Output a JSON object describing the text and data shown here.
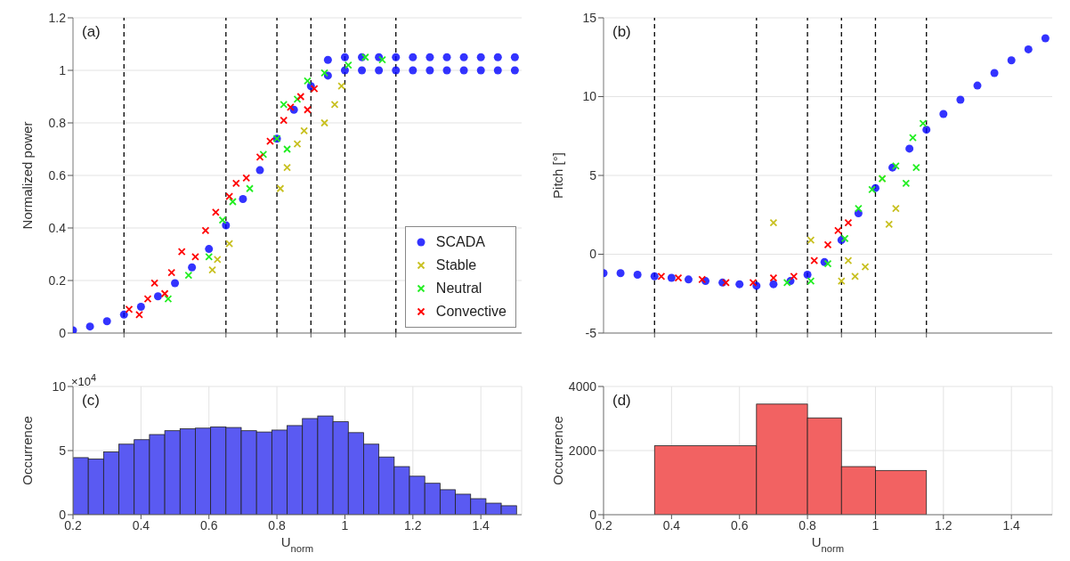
{
  "chart_data": [
    {
      "type": "scatter",
      "ylabel": "Normalized power",
      "annotations": [
        "(a)"
      ],
      "xlim": [
        0.2,
        1.52
      ],
      "xticks": [
        {
          "value": 0.35,
          "label": null
        },
        {
          "value": 0.65,
          "label": null
        },
        {
          "value": 0.8,
          "label": null
        },
        {
          "value": 0.9,
          "label": null
        },
        {
          "value": 1,
          "label": null
        },
        {
          "value": 1.15,
          "label": null
        }
      ],
      "ylim": [
        0,
        1.2
      ],
      "yticks": [
        0,
        0.2,
        0.4,
        0.6,
        0.8,
        1,
        1.2
      ],
      "grid": "y",
      "tick_labels": "y",
      "legend": "bottom right",
      "ref_lines": [
        {
          "axis": "x",
          "value": 0.35,
          "color": "#000000",
          "line_style": "dashed"
        },
        {
          "axis": "x",
          "value": 0.65,
          "color": "#000000",
          "line_style": "dashed"
        },
        {
          "axis": "x",
          "value": 0.8,
          "color": "#000000",
          "line_style": "dashed"
        },
        {
          "axis": "x",
          "value": 0.9,
          "color": "#000000",
          "line_style": "dashed"
        },
        {
          "axis": "x",
          "value": 1,
          "color": "#000000",
          "line_style": "dashed"
        },
        {
          "axis": "x",
          "value": 1.15,
          "color": "#000000",
          "line_style": "dashed"
        }
      ],
      "series": [
        {
          "name": "SCADA",
          "color": "#0000ff",
          "marker": "circle",
          "x": [
            0.2,
            0.25,
            0.3,
            0.35,
            0.4,
            0.45,
            0.5,
            0.55,
            0.6,
            0.65,
            0.7,
            0.75,
            0.8,
            0.85,
            0.9,
            0.95,
            1.0,
            1.05,
            1.1,
            1.15,
            1.2,
            1.25,
            1.3,
            1.35,
            1.4,
            1.45,
            1.5,
            0.95,
            1.0,
            1.05,
            1.1,
            1.15,
            1.2,
            1.25,
            1.3,
            1.35,
            1.4,
            1.45,
            1.5
          ],
          "values": [
            0.01,
            0.025,
            0.045,
            0.07,
            0.1,
            0.14,
            0.19,
            0.25,
            0.32,
            0.41,
            0.51,
            0.62,
            0.74,
            0.85,
            0.94,
            0.98,
            1.0,
            1.0,
            1.0,
            1.0,
            1.0,
            1.0,
            1.0,
            1.0,
            1.0,
            1.0,
            1.0,
            1.04,
            1.05,
            1.05,
            1.05,
            1.05,
            1.05,
            1.05,
            1.05,
            1.05,
            1.05,
            1.05,
            1.05
          ]
        },
        {
          "name": "Stable",
          "color": "#c8c020",
          "marker": "cross",
          "x": [
            0.61,
            0.625,
            0.66,
            0.81,
            0.83,
            0.86,
            0.88,
            0.94,
            0.97,
            0.99
          ],
          "values": [
            0.24,
            0.28,
            0.34,
            0.55,
            0.63,
            0.72,
            0.77,
            0.8,
            0.87,
            0.94
          ]
        },
        {
          "name": "Neutral",
          "color": "#22ee22",
          "marker": "cross",
          "x": [
            0.48,
            0.54,
            0.6,
            0.64,
            0.67,
            0.72,
            0.76,
            0.8,
            0.82,
            0.83,
            0.86,
            0.89,
            0.94,
            1.01,
            1.06,
            1.11
          ],
          "values": [
            0.13,
            0.22,
            0.29,
            0.43,
            0.5,
            0.55,
            0.68,
            0.74,
            0.87,
            0.7,
            0.89,
            0.96,
            0.99,
            1.02,
            1.05,
            1.04
          ]
        },
        {
          "name": "Convective",
          "color": "#ff0000",
          "marker": "cross",
          "x": [
            0.365,
            0.395,
            0.42,
            0.44,
            0.47,
            0.49,
            0.52,
            0.56,
            0.59,
            0.62,
            0.66,
            0.68,
            0.71,
            0.75,
            0.78,
            0.82,
            0.84,
            0.87,
            0.91,
            0.89
          ],
          "values": [
            0.09,
            0.07,
            0.13,
            0.19,
            0.15,
            0.23,
            0.31,
            0.29,
            0.39,
            0.46,
            0.52,
            0.57,
            0.59,
            0.67,
            0.73,
            0.81,
            0.86,
            0.9,
            0.93,
            0.85
          ]
        }
      ]
    },
    {
      "type": "scatter",
      "ylabel": "Pitch [°]",
      "annotations": [
        "(b)"
      ],
      "xlim": [
        0.2,
        1.52
      ],
      "xticks": [
        {
          "value": 0.35,
          "label": null
        },
        {
          "value": 0.65,
          "label": null
        },
        {
          "value": 0.8,
          "label": null
        },
        {
          "value": 0.9,
          "label": null
        },
        {
          "value": 1,
          "label": null
        },
        {
          "value": 1.15,
          "label": null
        }
      ],
      "ylim": [
        -5,
        15
      ],
      "yticks": [
        -5,
        0,
        5,
        10,
        15
      ],
      "grid": "y",
      "tick_labels": "y",
      "ref_lines": [
        {
          "axis": "x",
          "value": 0.35,
          "color": "#000000",
          "line_style": "dashed"
        },
        {
          "axis": "x",
          "value": 0.65,
          "color": "#000000",
          "line_style": "dashed"
        },
        {
          "axis": "x",
          "value": 0.8,
          "color": "#000000",
          "line_style": "dashed"
        },
        {
          "axis": "x",
          "value": 0.9,
          "color": "#000000",
          "line_style": "dashed"
        },
        {
          "axis": "x",
          "value": 1,
          "color": "#000000",
          "line_style": "dashed"
        },
        {
          "axis": "x",
          "value": 1.15,
          "color": "#000000",
          "line_style": "dashed"
        }
      ],
      "series": [
        {
          "color": "#0000ff",
          "marker": "circle",
          "x": [
            0.2,
            0.25,
            0.3,
            0.35,
            0.4,
            0.45,
            0.5,
            0.55,
            0.6,
            0.65,
            0.7,
            0.75,
            0.8,
            0.85,
            0.9,
            0.95,
            1.0,
            1.05,
            1.1,
            1.15,
            1.2,
            1.25,
            1.3,
            1.35,
            1.4,
            1.45,
            1.5
          ],
          "values": [
            -1.2,
            -1.2,
            -1.3,
            -1.4,
            -1.5,
            -1.6,
            -1.7,
            -1.8,
            -1.9,
            -2.0,
            -1.9,
            -1.7,
            -1.3,
            -0.5,
            0.9,
            2.6,
            4.2,
            5.5,
            6.7,
            7.9,
            8.9,
            9.8,
            10.7,
            11.5,
            12.3,
            13.0,
            13.7
          ]
        },
        {
          "color": "#c8c020",
          "marker": "cross",
          "x": [
            0.7,
            0.81,
            0.92,
            0.97,
            1.04,
            1.06,
            1.02,
            0.9,
            0.94
          ],
          "values": [
            2.0,
            0.9,
            -0.4,
            -0.8,
            1.9,
            2.9,
            4.8,
            -1.7,
            -1.4
          ]
        },
        {
          "color": "#22ee22",
          "marker": "cross",
          "x": [
            0.74,
            0.81,
            0.86,
            0.91,
            0.95,
            0.99,
            1.02,
            1.06,
            1.11,
            1.14,
            1.12,
            1.09
          ],
          "values": [
            -1.8,
            -1.7,
            -0.6,
            1.0,
            2.9,
            4.1,
            4.8,
            5.6,
            7.4,
            8.3,
            5.5,
            4.5
          ]
        },
        {
          "color": "#ff0000",
          "marker": "cross",
          "x": [
            0.37,
            0.42,
            0.49,
            0.56,
            0.64,
            0.7,
            0.76,
            0.82,
            0.86,
            0.89,
            0.92
          ],
          "values": [
            -1.4,
            -1.5,
            -1.6,
            -1.8,
            -1.8,
            -1.5,
            -1.4,
            -0.4,
            0.6,
            1.5,
            2.0
          ]
        }
      ]
    },
    {
      "type": "histogram",
      "xlabel": "U$_{norm}$",
      "ylabel": "Occurrence",
      "annotations": [
        "(c)",
        "×10$^{4}$"
      ],
      "xlim": [
        0.2,
        1.52
      ],
      "xticks": [
        0.2,
        0.4,
        0.6,
        0.8,
        1,
        1.2,
        1.4
      ],
      "ylim": [
        0,
        10
      ],
      "yticks": [
        0,
        5,
        10
      ],
      "grid": true,
      "color": "#5a5af2",
      "bins": [
        0.2,
        0.245,
        0.29,
        0.335,
        0.38,
        0.425,
        0.47,
        0.515,
        0.56,
        0.605,
        0.65,
        0.695,
        0.74,
        0.785,
        0.83,
        0.875,
        0.92,
        0.965,
        1.01,
        1.055,
        1.1,
        1.145,
        1.19,
        1.235,
        1.28,
        1.325,
        1.37,
        1.415,
        1.46,
        1.505
      ],
      "values": [
        4.45,
        4.35,
        4.9,
        5.5,
        5.85,
        6.25,
        6.55,
        6.7,
        6.75,
        6.85,
        6.8,
        6.55,
        6.45,
        6.6,
        6.95,
        7.5,
        7.7,
        7.25,
        6.4,
        5.5,
        4.5,
        3.75,
        3.0,
        2.45,
        1.95,
        1.6,
        1.25,
        0.9,
        0.7
      ]
    },
    {
      "type": "histogram",
      "xlabel": "U$_{norm}$",
      "ylabel": "Occurrence",
      "annotations": [
        "(d)"
      ],
      "xlim": [
        0.2,
        1.52
      ],
      "xticks": [
        0.2,
        0.4,
        0.6,
        0.8,
        1,
        1.2,
        1.4
      ],
      "ylim": [
        0,
        4000
      ],
      "yticks": [
        0,
        2000,
        4000
      ],
      "grid": true,
      "color": "#f26262",
      "bins": [
        0.35,
        0.65,
        0.8,
        0.9,
        1.0,
        1.15
      ],
      "values": [
        2150,
        3450,
        3020,
        1500,
        1380
      ]
    }
  ]
}
